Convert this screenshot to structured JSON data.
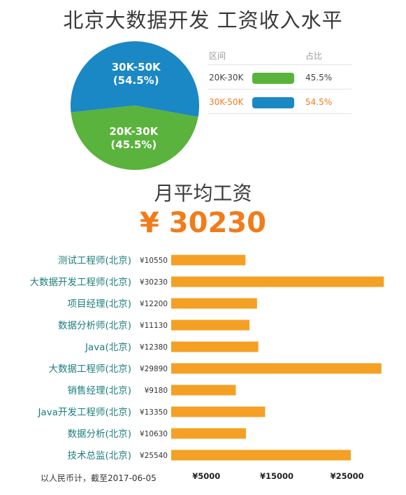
{
  "title": "北京大数据开发 工资收入水平",
  "legend": {
    "header_range": "区间",
    "header_share": "占比",
    "rows": [
      {
        "range": "20K-30K",
        "pct": "45.5%",
        "color": "#5ab33c",
        "text_color": "#444444"
      },
      {
        "range": "30K-50K",
        "pct": "54.5%",
        "color": "#1a88c4",
        "text_color": "#f07c1a"
      }
    ]
  },
  "avg_title": "月平均工资",
  "avg_value": "¥ 30230",
  "footnote": "以人民币计，截至2017-06-05",
  "chart_data": [
    {
      "type": "pie",
      "slices": [
        {
          "label": "30K-50K",
          "value_label": "(54.5%)",
          "value": 54.5,
          "color": "#1a88c4"
        },
        {
          "label": "20K-30K",
          "value_label": "(45.5%)",
          "value": 45.5,
          "color": "#5ab33c"
        }
      ]
    },
    {
      "type": "bar",
      "orientation": "horizontal",
      "categories": [
        "测试工程师(北京)",
        "大数据开发工程师(北京)",
        "项目经理(北京)",
        "数据分析师(北京)",
        "Java(北京)",
        "大数据工程师(北京)",
        "销售经理(北京)",
        "Java开发工程师(北京)",
        "数据分析(北京)",
        "技术总监(北京)"
      ],
      "values": [
        10550,
        30230,
        12200,
        11130,
        12380,
        29890,
        9180,
        13350,
        10630,
        25540
      ],
      "value_labels": [
        "¥10550",
        "¥30230",
        "¥12200",
        "¥11130",
        "¥12380",
        "¥29890",
        "¥9180",
        "¥13350",
        "¥10630",
        "¥25540"
      ],
      "x_ticks": [
        5000,
        15000,
        25000
      ],
      "x_tick_labels": [
        "¥5000",
        "¥15000",
        "¥25000"
      ],
      "xlim": [
        0,
        31000
      ],
      "bar_color": "#f4a024",
      "label_color": "#1e7e7e"
    }
  ]
}
